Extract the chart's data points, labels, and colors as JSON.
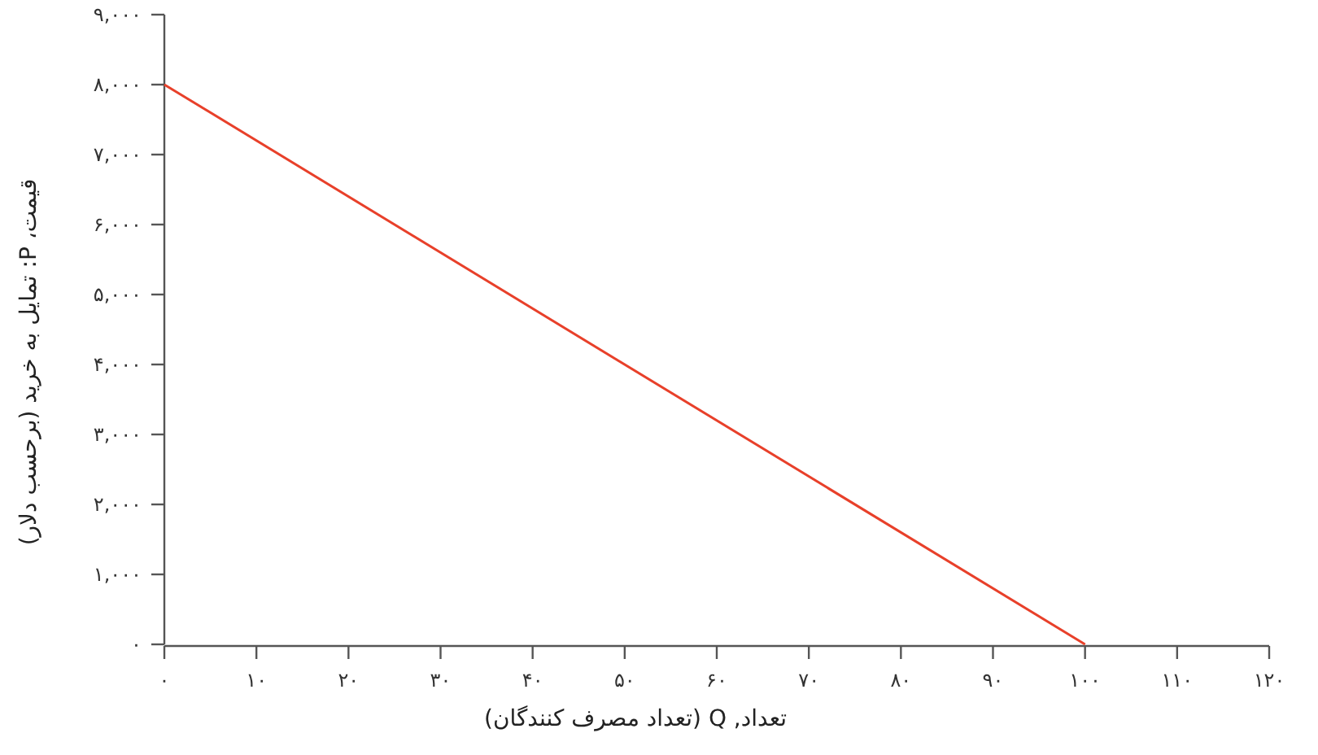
{
  "chart_data": {
    "type": "line",
    "xlabel": "تعداد, Q (تعداد مصرف کنندگان)",
    "ylabel": "قیمت، P: تمایل به خرید (برحسب دلار)",
    "series": [
      {
        "color": "#e8402a",
        "x": [
          0,
          100
        ],
        "values": [
          8000,
          0
        ]
      }
    ],
    "xlim": [
      0,
      120
    ],
    "ylim": [
      0,
      9000
    ],
    "xticks": [
      {
        "value": 0,
        "label": "۰"
      },
      {
        "value": 10,
        "label": "۱۰"
      },
      {
        "value": 20,
        "label": "۲۰"
      },
      {
        "value": 30,
        "label": "۳۰"
      },
      {
        "value": 40,
        "label": "۴۰"
      },
      {
        "value": 50,
        "label": "۵۰"
      },
      {
        "value": 60,
        "label": "۶۰"
      },
      {
        "value": 70,
        "label": "۷۰"
      },
      {
        "value": 80,
        "label": "۸۰"
      },
      {
        "value": 90,
        "label": "۹۰"
      },
      {
        "value": 100,
        "label": "۱۰۰"
      },
      {
        "value": 110,
        "label": "۱۱۰"
      },
      {
        "value": 120,
        "label": "۱۲۰"
      }
    ],
    "yticks": [
      {
        "value": 0,
        "label": "۰"
      },
      {
        "value": 1000,
        "label": "۱,۰۰۰"
      },
      {
        "value": 2000,
        "label": "۲,۰۰۰"
      },
      {
        "value": 3000,
        "label": "۳,۰۰۰"
      },
      {
        "value": 4000,
        "label": "۴,۰۰۰"
      },
      {
        "value": 5000,
        "label": "۵,۰۰۰"
      },
      {
        "value": 6000,
        "label": "۶,۰۰۰"
      },
      {
        "value": 7000,
        "label": "۷,۰۰۰"
      },
      {
        "value": 8000,
        "label": "۸,۰۰۰"
      },
      {
        "value": 9000,
        "label": "۹,۰۰۰"
      }
    ],
    "grid": false
  }
}
